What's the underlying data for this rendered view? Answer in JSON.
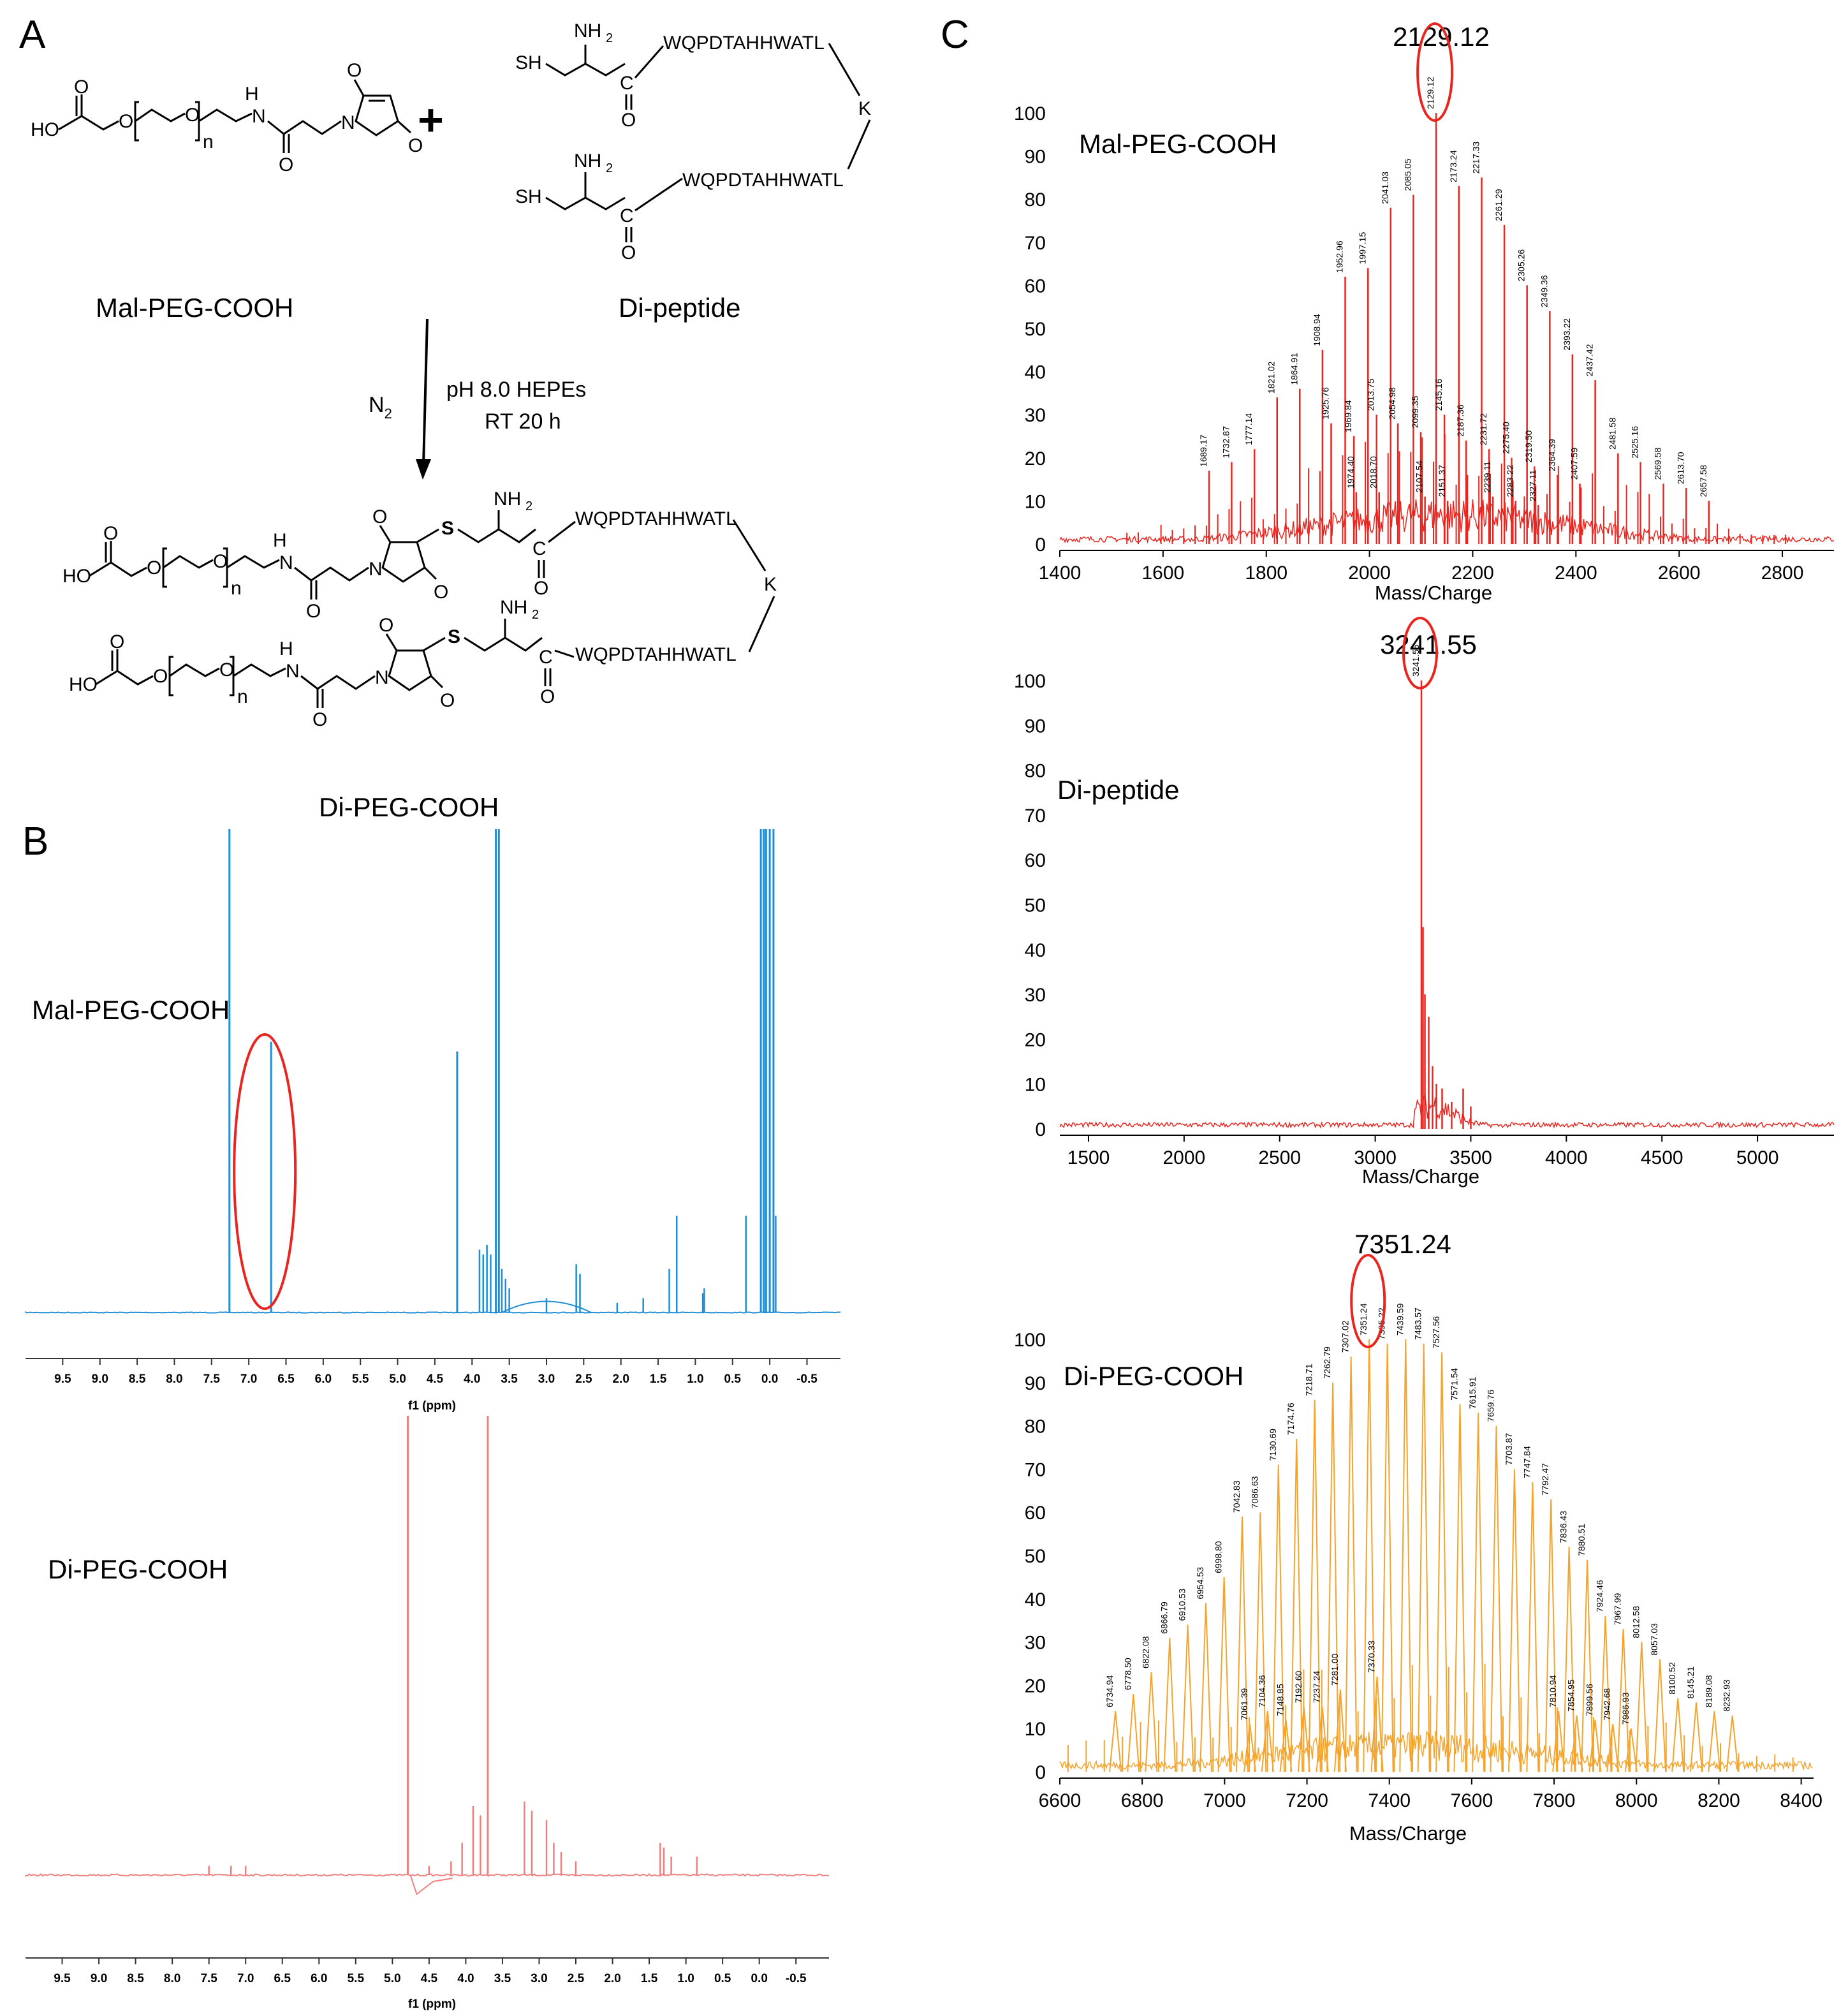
{
  "panels": {
    "a": "A",
    "b": "B",
    "c": "C"
  },
  "scheme": {
    "reagent1": "Mal-PEG-COOH",
    "reagent2": "Di-peptide",
    "product": "Di-PEG-COOH",
    "plus": "+",
    "atmosphere": "N",
    "atmosphere_sub": "2",
    "condition1": "pH 8.0 HEPEs",
    "condition2": "RT 20 h",
    "atoms": {
      "sh": "SH",
      "nh2": "NH",
      "nh2_sub": "2",
      "h": "H",
      "n": "N",
      "o": "O",
      "s": "S",
      "c": "C",
      "ho": "HO",
      "k": "K",
      "sub_n": "n",
      "peptide": "WQPDTAHHWATL"
    }
  },
  "nmr": {
    "xlabel": "f1 (ppm)",
    "ticks": [
      "9.5",
      "9.0",
      "8.5",
      "8.0",
      "7.5",
      "7.0",
      "6.5",
      "6.0",
      "5.5",
      "5.0",
      "4.5",
      "4.0",
      "3.5",
      "3.0",
      "2.5",
      "2.0",
      "1.5",
      "1.0",
      "0.5",
      "0.0",
      "-0.5"
    ],
    "spectra": [
      {
        "name": "Mal-PEG-COOH",
        "color": "#1f8dd6",
        "highlight_ppm": 6.7,
        "peaks": [
          [
            7.26,
            1.2
          ],
          [
            6.7,
            0.56
          ],
          [
            4.2,
            0.54
          ],
          [
            3.9,
            0.13
          ],
          [
            3.85,
            0.12
          ],
          [
            3.8,
            0.14
          ],
          [
            3.75,
            0.12
          ],
          [
            3.68,
            1.2
          ],
          [
            3.64,
            1.2
          ],
          [
            3.6,
            0.09
          ],
          [
            3.55,
            0.07
          ],
          [
            3.5,
            0.05
          ],
          [
            3.0,
            0.03
          ],
          [
            2.6,
            0.1
          ],
          [
            2.55,
            0.08
          ],
          [
            2.05,
            0.02
          ],
          [
            1.7,
            0.03
          ],
          [
            1.35,
            0.09
          ],
          [
            1.25,
            0.2
          ],
          [
            0.9,
            0.04
          ],
          [
            0.88,
            0.05
          ],
          [
            0.32,
            0.2
          ],
          [
            0.12,
            1.2
          ],
          [
            0.08,
            1.2
          ],
          [
            0.05,
            1.2
          ],
          [
            0.0,
            1.2
          ],
          [
            -0.05,
            1.2
          ],
          [
            -0.08,
            0.2
          ]
        ]
      },
      {
        "name": "Di-PEG-COOH",
        "color": "#f08080",
        "peaks": [
          [
            7.5,
            0.02
          ],
          [
            7.2,
            0.02
          ],
          [
            7.0,
            0.02
          ],
          [
            4.79,
            1.2
          ],
          [
            4.5,
            0.02
          ],
          [
            4.2,
            0.03
          ],
          [
            4.05,
            0.07
          ],
          [
            3.9,
            0.15
          ],
          [
            3.8,
            0.13
          ],
          [
            3.7,
            1.2
          ],
          [
            3.2,
            0.16
          ],
          [
            3.1,
            0.14
          ],
          [
            2.9,
            0.12
          ],
          [
            2.8,
            0.07
          ],
          [
            2.7,
            0.05
          ],
          [
            2.5,
            0.03
          ],
          [
            1.35,
            0.07
          ],
          [
            1.3,
            0.06
          ],
          [
            1.2,
            0.04
          ],
          [
            0.85,
            0.04
          ]
        ]
      }
    ]
  },
  "chart_data": [
    {
      "type": "line",
      "title": "2129.12",
      "series_label": "Mal-PEG-COOH",
      "xlabel": "Mass/Charge",
      "xlim": [
        1400,
        2900
      ],
      "ylim": [
        0,
        100
      ],
      "xticks": [
        1400,
        1600,
        1800,
        2000,
        2200,
        2400,
        2600,
        2800
      ],
      "yticks": [
        0,
        10,
        20,
        30,
        40,
        50,
        60,
        70,
        80,
        90,
        100
      ],
      "color": "#e8251f",
      "highlight": "2129.12",
      "peaks": [
        {
          "x": 1689.17,
          "y": 17,
          "label": "1689.17"
        },
        {
          "x": 1732.87,
          "y": 19,
          "label": "1732.87"
        },
        {
          "x": 1777.14,
          "y": 22,
          "label": "1777.14"
        },
        {
          "x": 1821.02,
          "y": 34,
          "label": "1821.02"
        },
        {
          "x": 1864.91,
          "y": 36,
          "label": "1864.91"
        },
        {
          "x": 1908.94,
          "y": 45,
          "label": "1908.94"
        },
        {
          "x": 1925.76,
          "y": 28,
          "label": "1925.76"
        },
        {
          "x": 1952.96,
          "y": 62,
          "label": "1952.96"
        },
        {
          "x": 1969.84,
          "y": 25,
          "label": "1969.84"
        },
        {
          "x": 1974.4,
          "y": 12,
          "label": "1974.40"
        },
        {
          "x": 1997.15,
          "y": 64,
          "label": "1997.15"
        },
        {
          "x": 2013.75,
          "y": 30,
          "label": "2013.75"
        },
        {
          "x": 2018.7,
          "y": 12,
          "label": "2018.70"
        },
        {
          "x": 2041.03,
          "y": 78,
          "label": "2041.03"
        },
        {
          "x": 2054.98,
          "y": 28,
          "label": "2054.98"
        },
        {
          "x": 2085.05,
          "y": 81,
          "label": "2085.05"
        },
        {
          "x": 2099.35,
          "y": 26,
          "label": "2099.35"
        },
        {
          "x": 2107.54,
          "y": 11,
          "label": "2107.54"
        },
        {
          "x": 2129.12,
          "y": 100,
          "label": "2129.12"
        },
        {
          "x": 2145.16,
          "y": 30,
          "label": "2145.16"
        },
        {
          "x": 2151.37,
          "y": 10,
          "label": "2151.37"
        },
        {
          "x": 2173.24,
          "y": 83,
          "label": "2173.24"
        },
        {
          "x": 2187.36,
          "y": 24,
          "label": "2187.36"
        },
        {
          "x": 2217.33,
          "y": 85,
          "label": "2217.33"
        },
        {
          "x": 2231.72,
          "y": 22,
          "label": "2231.72"
        },
        {
          "x": 2239.11,
          "y": 11,
          "label": "2239.11"
        },
        {
          "x": 2261.29,
          "y": 74,
          "label": "2261.29"
        },
        {
          "x": 2275.4,
          "y": 20,
          "label": "2275.40"
        },
        {
          "x": 2283.22,
          "y": 10,
          "label": "2283.22"
        },
        {
          "x": 2305.26,
          "y": 60,
          "label": "2305.26"
        },
        {
          "x": 2319.5,
          "y": 18,
          "label": "2319.50"
        },
        {
          "x": 2327.11,
          "y": 9,
          "label": "2327.11"
        },
        {
          "x": 2349.36,
          "y": 54,
          "label": "2349.36"
        },
        {
          "x": 2364.39,
          "y": 16,
          "label": "2364.39"
        },
        {
          "x": 2393.22,
          "y": 44,
          "label": "2393.22"
        },
        {
          "x": 2407.59,
          "y": 14,
          "label": "2407.59"
        },
        {
          "x": 2437.42,
          "y": 38,
          "label": "2437.42"
        },
        {
          "x": 2481.58,
          "y": 21,
          "label": "2481.58"
        },
        {
          "x": 2525.16,
          "y": 19,
          "label": "2525.16"
        },
        {
          "x": 2569.58,
          "y": 14,
          "label": "2569.58"
        },
        {
          "x": 2613.7,
          "y": 13,
          "label": "2613.70"
        },
        {
          "x": 2657.58,
          "y": 10,
          "label": "2657.58"
        }
      ]
    },
    {
      "type": "line",
      "title": "3241.55",
      "series_label": "Di-peptide",
      "xlabel": "Mass/Charge",
      "xlim": [
        1350,
        5400
      ],
      "ylim": [
        0,
        100
      ],
      "xticks": [
        1500,
        2000,
        2500,
        3000,
        3500,
        4000,
        4500,
        5000
      ],
      "yticks": [
        0,
        10,
        20,
        30,
        40,
        50,
        60,
        70,
        80,
        90,
        100
      ],
      "color": "#e8251f",
      "highlight": "3241.55",
      "peaks": [
        {
          "x": 3241.55,
          "y": 100,
          "label": "3241.55"
        },
        {
          "x": 3250,
          "y": 45
        },
        {
          "x": 3260,
          "y": 30
        },
        {
          "x": 3280,
          "y": 25
        },
        {
          "x": 3300,
          "y": 14
        },
        {
          "x": 3320,
          "y": 10
        },
        {
          "x": 3350,
          "y": 9
        },
        {
          "x": 3400,
          "y": 6
        },
        {
          "x": 3460,
          "y": 9
        },
        {
          "x": 3500,
          "y": 5
        }
      ]
    },
    {
      "type": "line",
      "title": "7351.24",
      "series_label": "Di-PEG-COOH",
      "xlabel": "Mass/Charge",
      "xlim": [
        6600,
        8430
      ],
      "ylim": [
        0,
        100
      ],
      "xticks": [
        6600,
        6800,
        7000,
        7200,
        7400,
        7600,
        7800,
        8000,
        8200,
        8400
      ],
      "yticks": [
        0,
        10,
        20,
        30,
        40,
        50,
        60,
        70,
        80,
        90,
        100
      ],
      "color": "#f5a32a",
      "highlight": "7351.24",
      "peaks": [
        {
          "x": 6734.94,
          "y": 14,
          "label": "6734.94"
        },
        {
          "x": 6778.5,
          "y": 18,
          "label": "6778.50"
        },
        {
          "x": 6822.08,
          "y": 23,
          "label": "6822.08"
        },
        {
          "x": 6866.79,
          "y": 31,
          "label": "6866.79"
        },
        {
          "x": 6910.53,
          "y": 34,
          "label": "6910.53"
        },
        {
          "x": 6954.53,
          "y": 39,
          "label": "6954.53"
        },
        {
          "x": 6998.8,
          "y": 45,
          "label": "6998.80"
        },
        {
          "x": 7042.83,
          "y": 59,
          "label": "7042.83"
        },
        {
          "x": 7061.39,
          "y": 11,
          "label": "7061.39"
        },
        {
          "x": 7086.63,
          "y": 60,
          "label": "7086.63"
        },
        {
          "x": 7104.36,
          "y": 14,
          "label": "7104.36"
        },
        {
          "x": 7130.69,
          "y": 71,
          "label": "7130.69"
        },
        {
          "x": 7148.85,
          "y": 12,
          "label": "7148.85"
        },
        {
          "x": 7174.76,
          "y": 77,
          "label": "7174.76"
        },
        {
          "x": 7192.6,
          "y": 15,
          "label": "7192.60"
        },
        {
          "x": 7218.71,
          "y": 86,
          "label": "7218.71"
        },
        {
          "x": 7237.24,
          "y": 15,
          "label": "7237.24"
        },
        {
          "x": 7262.79,
          "y": 90,
          "label": "7262.79"
        },
        {
          "x": 7281.0,
          "y": 19,
          "label": "7281.00"
        },
        {
          "x": 7307.02,
          "y": 96,
          "label": "7307.02"
        },
        {
          "x": 7351.24,
          "y": 100,
          "label": "7351.24"
        },
        {
          "x": 7370.33,
          "y": 22,
          "label": "7370.33"
        },
        {
          "x": 7395.22,
          "y": 99,
          "label": "7395.22"
        },
        {
          "x": 7439.59,
          "y": 100,
          "label": "7439.59"
        },
        {
          "x": 7483.57,
          "y": 99,
          "label": "7483.57"
        },
        {
          "x": 7527.56,
          "y": 97,
          "label": "7527.56"
        },
        {
          "x": 7571.54,
          "y": 85,
          "label": "7571.54"
        },
        {
          "x": 7615.91,
          "y": 83,
          "label": "7615.91"
        },
        {
          "x": 7659.76,
          "y": 80,
          "label": "7659.76"
        },
        {
          "x": 7703.87,
          "y": 70,
          "label": "7703.87"
        },
        {
          "x": 7747.84,
          "y": 67,
          "label": "7747.84"
        },
        {
          "x": 7792.47,
          "y": 63,
          "label": "7792.47"
        },
        {
          "x": 7810.94,
          "y": 14,
          "label": "7810.94"
        },
        {
          "x": 7836.43,
          "y": 52,
          "label": "7836.43"
        },
        {
          "x": 7854.95,
          "y": 13,
          "label": "7854.95"
        },
        {
          "x": 7880.51,
          "y": 49,
          "label": "7880.51"
        },
        {
          "x": 7899.56,
          "y": 12,
          "label": "7899.56"
        },
        {
          "x": 7924.46,
          "y": 36,
          "label": "7924.46"
        },
        {
          "x": 7942.68,
          "y": 11,
          "label": "7942.68"
        },
        {
          "x": 7967.99,
          "y": 33,
          "label": "7967.99"
        },
        {
          "x": 7986.93,
          "y": 10,
          "label": "7986.93"
        },
        {
          "x": 8012.58,
          "y": 30,
          "label": "8012.58"
        },
        {
          "x": 8057.03,
          "y": 26,
          "label": "8057.03"
        },
        {
          "x": 8100.52,
          "y": 17,
          "label": "8100.52"
        },
        {
          "x": 8145.21,
          "y": 16,
          "label": "8145.21"
        },
        {
          "x": 8189.08,
          "y": 14,
          "label": "8189.08"
        },
        {
          "x": 8232.93,
          "y": 13,
          "label": "8232.93"
        }
      ]
    }
  ]
}
